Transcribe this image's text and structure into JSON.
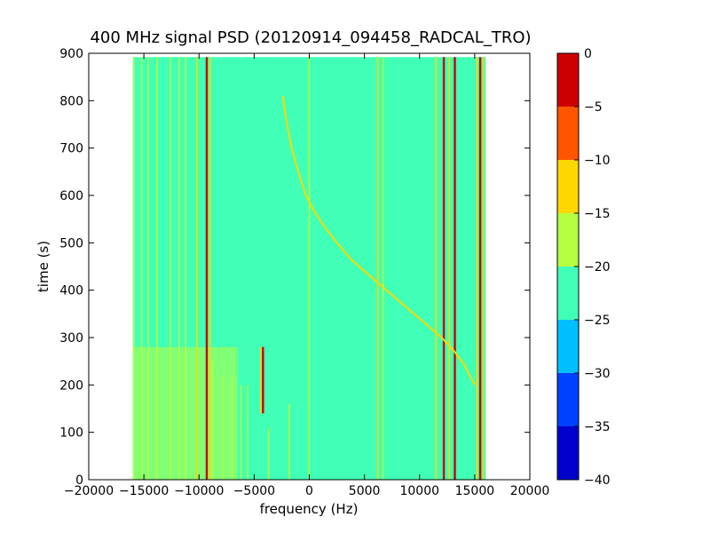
{
  "chart_data": {
    "type": "heatmap",
    "title": "400 MHz signal PSD (20120914_094458_RADCAL_TRO)",
    "xlabel": "frequency (Hz)",
    "ylabel": "time (s)",
    "xlim": [
      -20000,
      20000
    ],
    "ylim": [
      0,
      900
    ],
    "x_ticks": [
      -20000,
      -15000,
      -10000,
      -5000,
      0,
      5000,
      10000,
      15000,
      20000
    ],
    "y_ticks": [
      0,
      100,
      200,
      300,
      400,
      500,
      600,
      700,
      800,
      900
    ],
    "grid": false,
    "data_extent": {
      "freq_min": -16000,
      "freq_max": 16000,
      "time_max": 892
    },
    "background_level": -22.5,
    "colorbar": {
      "ticks": [
        0,
        -5,
        -10,
        -15,
        -20,
        -25,
        -30,
        -35,
        -40
      ],
      "levels": [
        {
          "from": -40,
          "to": -35,
          "color": "#0000cd"
        },
        {
          "from": -35,
          "to": -30,
          "color": "#0040ff"
        },
        {
          "from": -30,
          "to": -25,
          "color": "#00bfff"
        },
        {
          "from": -25,
          "to": -20,
          "color": "#40ffb6"
        },
        {
          "from": -20,
          "to": -15,
          "color": "#b6ff40"
        },
        {
          "from": -15,
          "to": -10,
          "color": "#ffd700"
        },
        {
          "from": -10,
          "to": -5,
          "color": "#ff5500"
        },
        {
          "from": -5,
          "to": 0,
          "color": "#cd0000"
        }
      ]
    },
    "lower_patch": {
      "freq_from": -16000,
      "freq_to": -6500,
      "time_from": 0,
      "time_to": 280,
      "level": -17.5
    },
    "vertical_lines": [
      {
        "freq": -15900,
        "t0": 0,
        "t1": 892,
        "level": -17.5
      },
      {
        "freq": -15200,
        "t0": 0,
        "t1": 892,
        "level": -17.5
      },
      {
        "freq": -14600,
        "t0": 0,
        "t1": 892,
        "level": -17.5
      },
      {
        "freq": -13800,
        "t0": 0,
        "t1": 892,
        "level": -17.5
      },
      {
        "freq": -12600,
        "t0": 0,
        "t1": 892,
        "level": -17.5
      },
      {
        "freq": -11800,
        "t0": 0,
        "t1": 892,
        "level": -17.5
      },
      {
        "freq": -11200,
        "t0": 0,
        "t1": 892,
        "level": -17.5
      },
      {
        "freq": -10200,
        "t0": 0,
        "t1": 892,
        "level": -12.5
      },
      {
        "freq": -9300,
        "t0": 0,
        "t1": 892,
        "level": -2.5
      },
      {
        "freq": -9000,
        "t0": 0,
        "t1": 892,
        "level": -12.5
      },
      {
        "freq": -8800,
        "t0": 0,
        "t1": 250,
        "level": -17.5
      },
      {
        "freq": -7800,
        "t0": 0,
        "t1": 220,
        "level": -17.5
      },
      {
        "freq": -7000,
        "t0": 0,
        "t1": 220,
        "level": -17.5
      },
      {
        "freq": -6200,
        "t0": 0,
        "t1": 200,
        "level": -17.5
      },
      {
        "freq": -5600,
        "t0": 0,
        "t1": 200,
        "level": -17.5
      },
      {
        "freq": -4200,
        "t0": 140,
        "t1": 280,
        "level": -2.5
      },
      {
        "freq": -4400,
        "t0": 140,
        "t1": 280,
        "level": -12.5
      },
      {
        "freq": -3700,
        "t0": 0,
        "t1": 110,
        "level": -17.5
      },
      {
        "freq": -1800,
        "t0": 0,
        "t1": 160,
        "level": -17.5
      },
      {
        "freq": 0,
        "t0": 0,
        "t1": 892,
        "level": -17.5
      },
      {
        "freq": 6200,
        "t0": 0,
        "t1": 892,
        "level": -12.5
      },
      {
        "freq": 6700,
        "t0": 0,
        "t1": 892,
        "level": -17.5
      },
      {
        "freq": 11500,
        "t0": 0,
        "t1": 892,
        "level": -12.5
      },
      {
        "freq": 12200,
        "t0": 0,
        "t1": 892,
        "level": -2.5
      },
      {
        "freq": 12700,
        "t0": 0,
        "t1": 892,
        "level": -12.5
      },
      {
        "freq": 13200,
        "t0": 0,
        "t1": 892,
        "level": -2.5
      },
      {
        "freq": 15200,
        "t0": 0,
        "t1": 892,
        "level": -12.5
      },
      {
        "freq": 15500,
        "t0": 0,
        "t1": 892,
        "level": -2.5
      },
      {
        "freq": 15800,
        "t0": 0,
        "t1": 892,
        "level": -12.5
      }
    ],
    "chirp": {
      "level": -12.5,
      "points": [
        [
          -2400,
          810
        ],
        [
          -2100,
          760
        ],
        [
          -1600,
          700
        ],
        [
          -1000,
          650
        ],
        [
          -300,
          600
        ],
        [
          500,
          565
        ],
        [
          1500,
          530
        ],
        [
          2500,
          500
        ],
        [
          3800,
          465
        ],
        [
          5000,
          440
        ],
        [
          6000,
          420
        ],
        [
          7500,
          390
        ],
        [
          9000,
          360
        ],
        [
          10500,
          330
        ],
        [
          12000,
          300
        ],
        [
          13000,
          275
        ],
        [
          14000,
          245
        ],
        [
          15000,
          200
        ]
      ]
    }
  }
}
